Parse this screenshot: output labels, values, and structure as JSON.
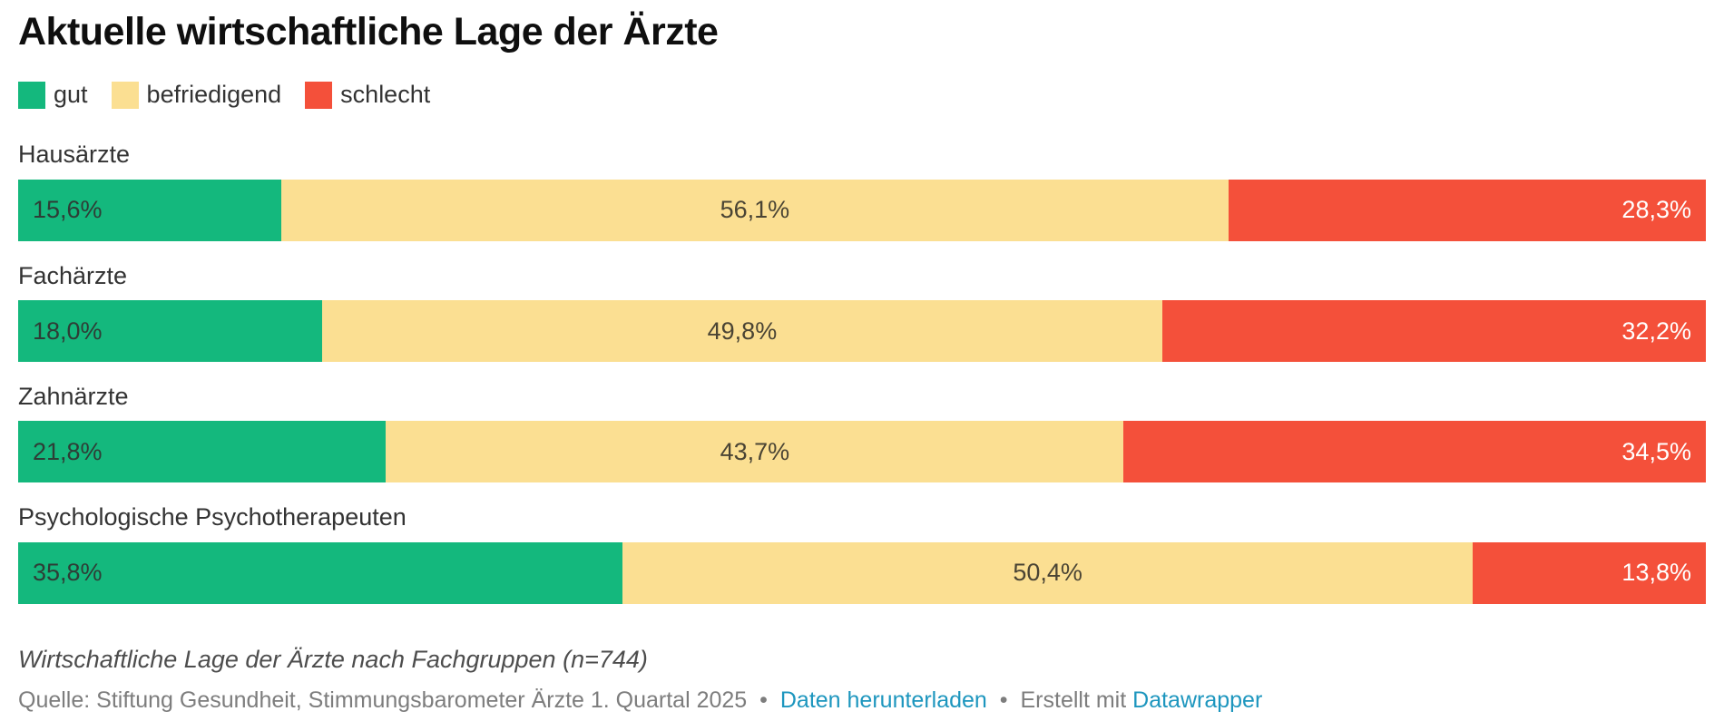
{
  "title": "Aktuelle wirtschaftliche Lage der Ärzte",
  "colors": {
    "gut": "#14b87d",
    "befriedigend": "#fbdf92",
    "schlecht": "#f4503a",
    "link": "#1d96be",
    "background": "#ffffff"
  },
  "legend": [
    {
      "key": "gut",
      "label": "gut",
      "color": "#14b87d"
    },
    {
      "key": "befriedigend",
      "label": "befriedigend",
      "color": "#fbdf92"
    },
    {
      "key": "schlecht",
      "label": "schlecht",
      "color": "#f4503a"
    }
  ],
  "chart_data": {
    "type": "bar",
    "stacked": true,
    "orientation": "horizontal",
    "title": "Aktuelle wirtschaftliche Lage der Ärzte",
    "unit": "%",
    "xlim": [
      0,
      100
    ],
    "grid": false,
    "legend_position": "top",
    "categories": [
      "Hausärzte",
      "Fachärzte",
      "Zahnärzte",
      "Psychologische Psychotherapeuten"
    ],
    "series": [
      {
        "name": "gut",
        "color": "#14b87d",
        "label_color": "#2e3d36",
        "label_align": "left",
        "values": [
          15.6,
          18.0,
          21.8,
          35.8
        ],
        "labels": [
          "15,6%",
          "18,0%",
          "21,8%",
          "35,8%"
        ]
      },
      {
        "name": "befriedigend",
        "color": "#fbdf92",
        "label_color": "#4a4434",
        "label_align": "center",
        "values": [
          56.1,
          49.8,
          43.7,
          50.4
        ],
        "labels": [
          "56,1%",
          "49,8%",
          "43,7%",
          "50,4%"
        ]
      },
      {
        "name": "schlecht",
        "color": "#f4503a",
        "label_color": "#ffffff",
        "label_align": "right",
        "values": [
          28.3,
          32.2,
          34.5,
          13.8
        ],
        "labels": [
          "28,3%",
          "32,2%",
          "34,5%",
          "13,8%"
        ]
      }
    ]
  },
  "footer": {
    "note": "Wirtschaftliche Lage der Ärzte nach Fachgruppen (n=744)",
    "source": "Quelle: Stiftung Gesundheit, Stimmungsbarometer Ärzte 1. Quartal 2025",
    "separator": "•",
    "download_label": "Daten herunterladen",
    "created_with": "Erstellt mit",
    "datawrapper_label": "Datawrapper"
  }
}
